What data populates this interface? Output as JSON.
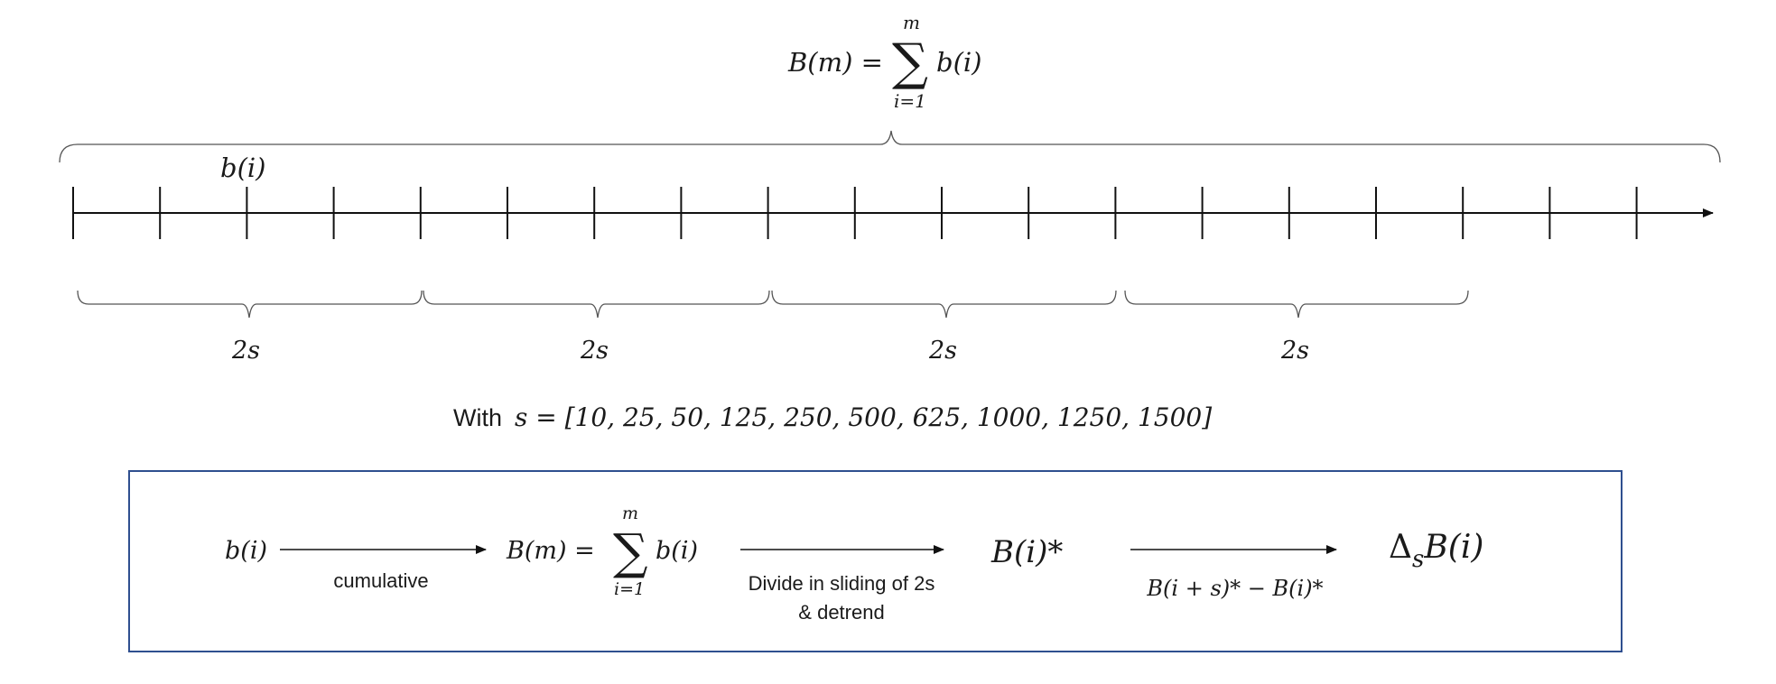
{
  "top_formula": {
    "lhs": "B(m) =",
    "sum_symbol": "∑",
    "upper_limit": "m",
    "lower_limit": "i=1",
    "summand": "b(i)"
  },
  "timeline": {
    "point_label": "b(i)",
    "window_labels": [
      "2s",
      "2s",
      "2s",
      "2s"
    ]
  },
  "scales": {
    "prefix": "With",
    "formula": "s = [10, 25, 50, 125, 250, 500, 625, 1000, 1250, 1500]"
  },
  "pipeline": {
    "border_color": "#2f4f8f",
    "input": "b(i)",
    "step1_label": "cumulative",
    "cumsum": {
      "lhs": "B(m) =",
      "sum_symbol": "∑",
      "upper_limit": "m",
      "lower_limit": "i=1",
      "summand": "b(i)"
    },
    "step2_label_line1": "Divide in sliding of 2s",
    "step2_label_line2": "& detrend",
    "detrended": "B(i)*",
    "step3_label": "B(i + s)* − B(i)*",
    "output": "Δ_sB(i)",
    "output_delta": "Δ",
    "output_sub": "s",
    "output_rest": "B(i)"
  }
}
